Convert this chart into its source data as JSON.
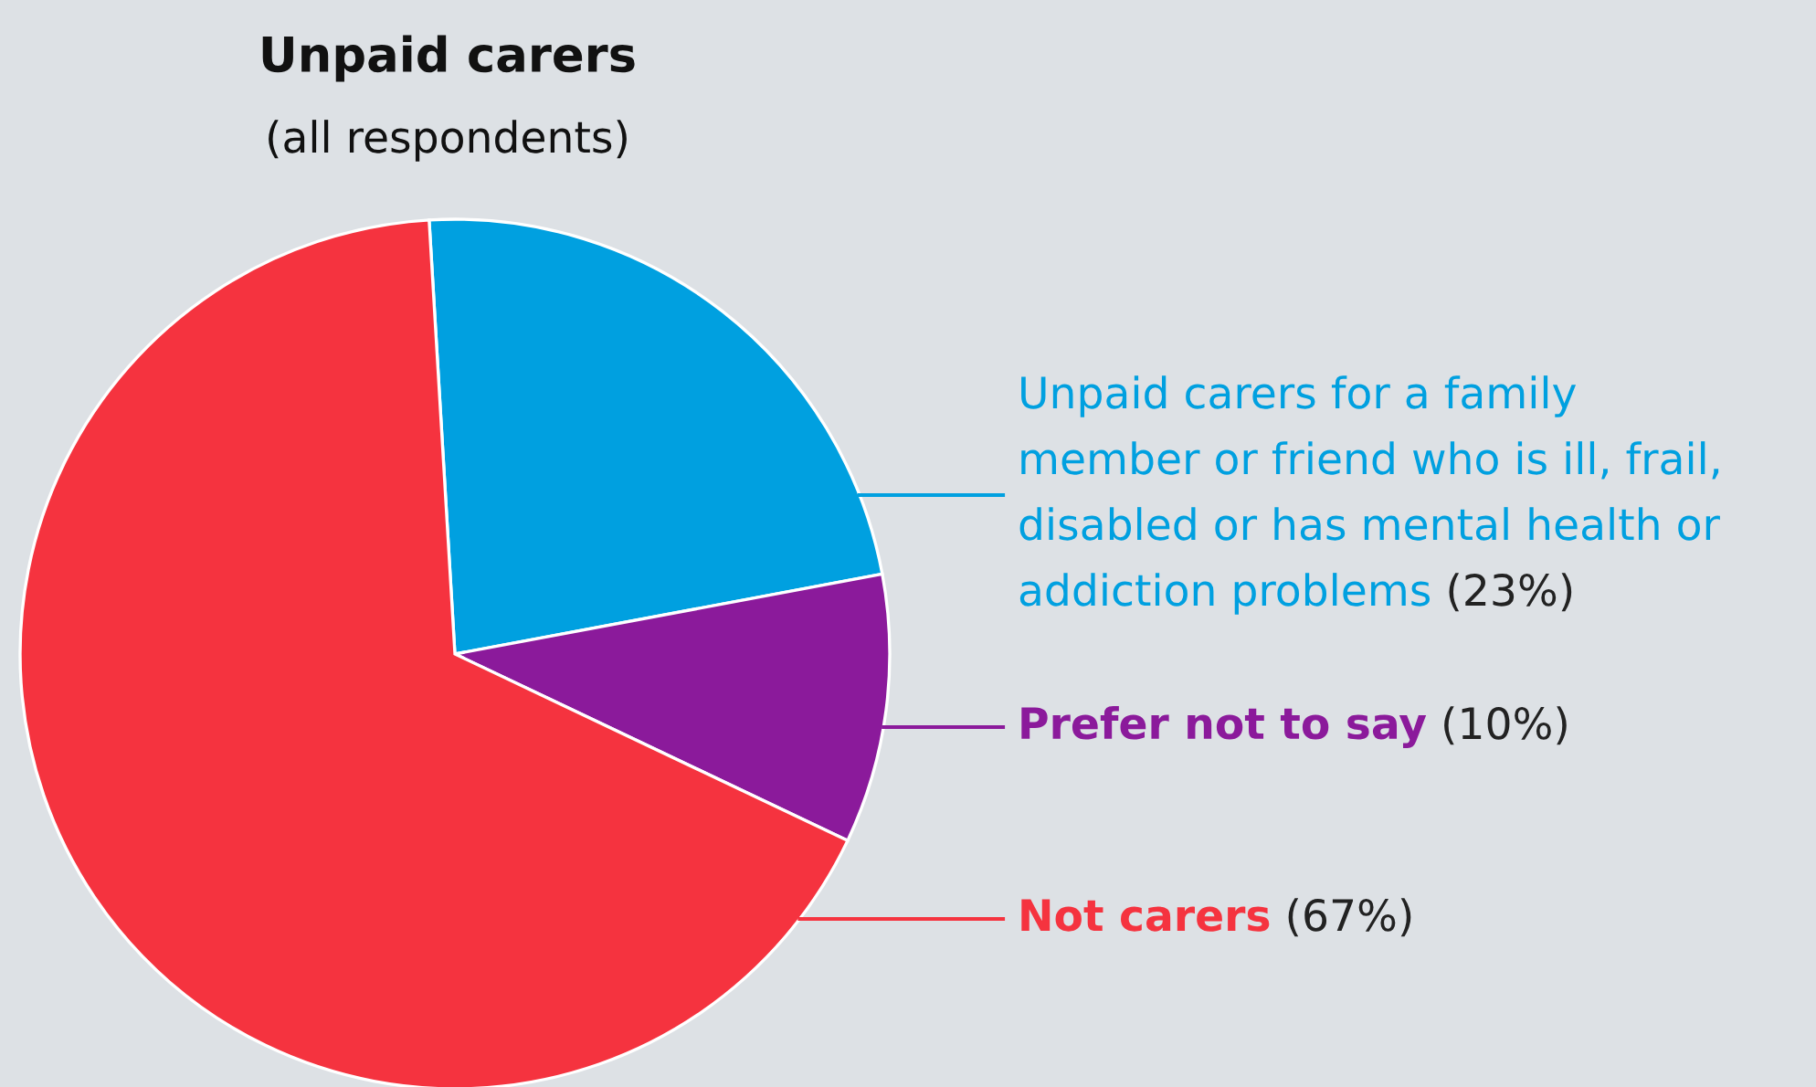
{
  "chart_data": {
    "type": "pie",
    "title": "Unpaid carers",
    "subtitle": "(all respondents)",
    "categories": [
      "Unpaid carers for a family\nmember or friend who is ill, frail,\ndisabled or has mental health or\naddiction problems",
      "Prefer not to say",
      "Not carers"
    ],
    "values": [
      23,
      10,
      67
    ],
    "colors": [
      "#00a0e0",
      "#8b1a9b",
      "#f5333f"
    ],
    "value_labels": [
      "(23%)",
      "(10%)",
      "(67%)"
    ]
  }
}
